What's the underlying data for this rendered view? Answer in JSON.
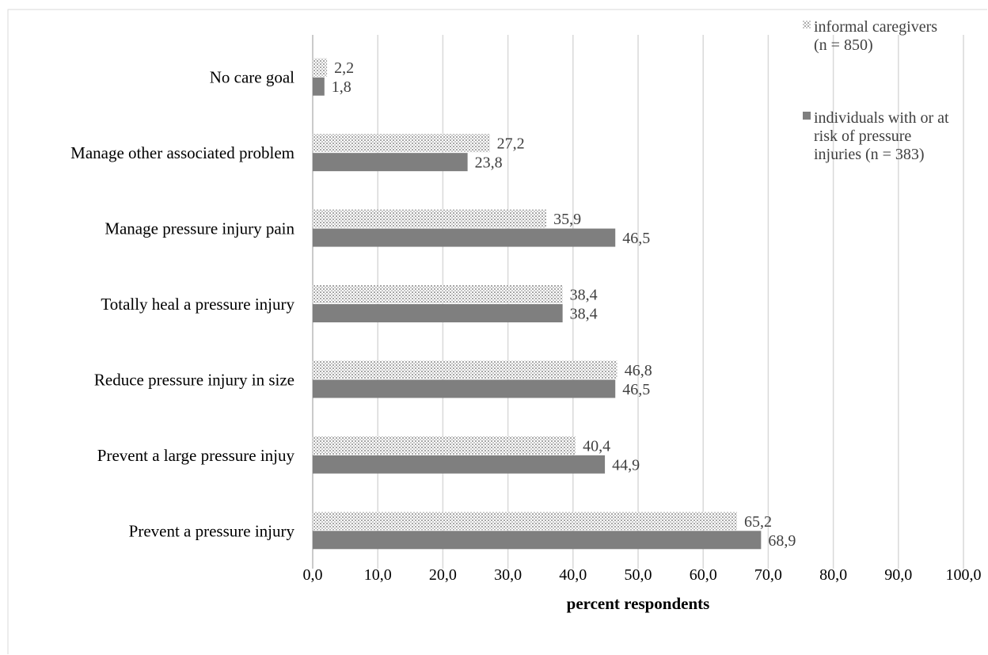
{
  "chart_data": {
    "type": "bar",
    "orientation": "horizontal",
    "title": "",
    "xlabel": "percent respondents",
    "ylabel": "",
    "xlim": [
      0,
      100
    ],
    "x_ticks": [
      "0,0",
      "10,0",
      "20,0",
      "30,0",
      "40,0",
      "50,0",
      "60,0",
      "70,0",
      "80,0",
      "90,0",
      "100,0"
    ],
    "grid": "vertical",
    "legend_position": "top-right",
    "categories": [
      "No care goal",
      "Manage other associated problem",
      "Manage pressure injury pain",
      "Totally heal a pressure injury",
      "Reduce pressure injury in size",
      "Prevent a large pressure injuy",
      "Prevent a pressure injury"
    ],
    "series": [
      {
        "name": "informal caregivers (n = 850)",
        "legend_lines": [
          "informal caregivers",
          "(n = 850)"
        ],
        "pattern": "dotted",
        "color": "#d9d9d9",
        "values": [
          2.2,
          27.2,
          35.9,
          38.4,
          46.8,
          40.4,
          65.2
        ],
        "labels": [
          "2,2",
          "27,2",
          "35,9",
          "38,4",
          "46,8",
          "40,4",
          "65,2"
        ]
      },
      {
        "name": "individuals with or at risk of pressure injuries (n = 383)",
        "legend_lines": [
          "individuals with or at",
          "risk of pressure",
          "injuries (n = 383)"
        ],
        "pattern": "solid",
        "color": "#7f7f7f",
        "values": [
          1.8,
          23.8,
          46.5,
          38.4,
          46.5,
          44.9,
          68.9
        ],
        "labels": [
          "1,8",
          "23,8",
          "46,5",
          "38,4",
          "46,5",
          "44,9",
          "68,9"
        ]
      }
    ]
  }
}
